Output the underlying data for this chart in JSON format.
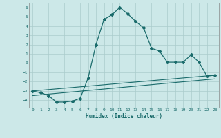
{
  "xlabel": "Humidex (Indice chaleur)",
  "bg_color": "#cce8e8",
  "grid_color": "#aacccc",
  "line_color": "#1a6b6b",
  "xlim": [
    -0.5,
    23.5
  ],
  "ylim": [
    -4.8,
    6.5
  ],
  "xticks": [
    0,
    1,
    2,
    3,
    4,
    5,
    6,
    7,
    8,
    9,
    10,
    11,
    12,
    13,
    14,
    15,
    16,
    17,
    18,
    19,
    20,
    21,
    22,
    23
  ],
  "yticks": [
    -4,
    -3,
    -2,
    -1,
    0,
    1,
    2,
    3,
    4,
    5,
    6
  ],
  "curve1_x": [
    0,
    1,
    2,
    3,
    4,
    5,
    6,
    7,
    8,
    9,
    10,
    11,
    12,
    13,
    14,
    15,
    16,
    17,
    18,
    19,
    20,
    21,
    22,
    23
  ],
  "curve1_y": [
    -3.0,
    -3.2,
    -3.5,
    -4.2,
    -4.2,
    -4.1,
    -3.8,
    -1.6,
    2.0,
    4.7,
    5.2,
    6.0,
    5.3,
    4.5,
    3.8,
    1.6,
    1.3,
    0.1,
    0.1,
    0.1,
    0.9,
    0.1,
    -1.4,
    -1.3
  ],
  "line1_x": [
    0,
    23
  ],
  "line1_y": [
    -3.0,
    -1.3
  ],
  "line2_x": [
    0,
    23
  ],
  "line2_y": [
    -3.5,
    -1.7
  ]
}
